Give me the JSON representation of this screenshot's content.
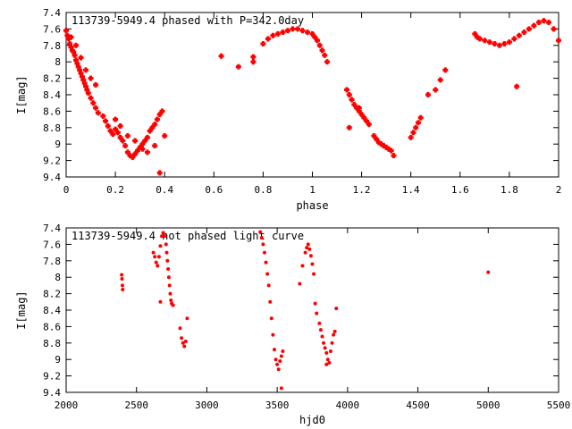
{
  "colors": {
    "points": "#ff0000",
    "axes": "#000000",
    "background": "#ffffff"
  },
  "chart_data": [
    {
      "type": "scatter",
      "title": "113739-5949.4 phased with P=342.0day",
      "xlabel": "phase",
      "ylabel": "I[mag]",
      "xlim": [
        0,
        2
      ],
      "ylim": [
        7.4,
        9.4
      ],
      "y_inverted": true,
      "x_ticks": [
        "0",
        "0.2",
        "0.4",
        "0.6",
        "0.8",
        "1",
        "1.2",
        "1.4",
        "1.6",
        "1.8",
        "2"
      ],
      "y_ticks": [
        "7.4",
        "7.6",
        "7.8",
        "8",
        "8.2",
        "8.4",
        "8.6",
        "8.8",
        "9",
        "9.2",
        "9.4"
      ],
      "grid": false,
      "series": [
        {
          "marker": "plus-bold",
          "x": [
            0.0,
            0.005,
            0.01,
            0.015,
            0.02,
            0.025,
            0.03,
            0.035,
            0.04,
            0.045,
            0.05,
            0.055,
            0.06,
            0.065,
            0.07,
            0.075,
            0.08,
            0.085,
            0.09,
            0.1,
            0.11,
            0.12,
            0.13,
            0.15,
            0.16,
            0.17,
            0.18,
            0.19,
            0.2,
            0.21,
            0.22,
            0.23,
            0.24,
            0.25,
            0.26,
            0.27,
            0.28,
            0.29,
            0.3,
            0.31,
            0.32,
            0.33,
            0.34,
            0.35,
            0.36,
            0.37,
            0.38,
            0.39,
            0.4,
            0.02,
            0.04,
            0.06,
            0.08,
            0.1,
            0.12,
            0.2,
            0.22,
            0.25,
            0.28,
            0.31,
            0.33,
            0.36,
            0.38,
            0.63,
            0.7,
            0.76,
            0.76,
            0.8,
            0.82,
            0.84,
            0.86,
            0.88,
            0.9,
            0.92,
            0.94,
            0.96,
            0.98,
            1.0,
            1.01,
            1.02,
            1.03,
            1.04,
            1.05,
            1.06,
            1.14,
            1.15,
            1.16,
            1.17,
            1.18,
            1.19,
            1.2,
            1.21,
            1.22,
            1.23,
            1.25,
            1.26,
            1.27,
            1.28,
            1.29,
            1.3,
            1.31,
            1.32,
            1.33,
            1.15,
            1.19,
            1.4,
            1.41,
            1.42,
            1.43,
            1.44,
            1.47,
            1.5,
            1.52,
            1.54,
            1.66,
            1.67,
            1.68,
            1.7,
            1.72,
            1.74,
            1.76,
            1.78,
            1.8,
            1.82,
            1.84,
            1.86,
            1.88,
            1.9,
            1.92,
            1.94,
            1.96,
            1.98,
            2.0,
            1.83
          ],
          "y": [
            7.62,
            7.68,
            7.72,
            7.78,
            7.82,
            7.86,
            7.88,
            7.92,
            7.98,
            8.02,
            8.06,
            8.1,
            8.14,
            8.18,
            8.22,
            8.26,
            8.3,
            8.34,
            8.38,
            8.44,
            8.5,
            8.56,
            8.62,
            8.66,
            8.72,
            8.78,
            8.84,
            8.88,
            8.82,
            8.86,
            8.92,
            8.96,
            9.02,
            9.1,
            9.14,
            9.16,
            9.12,
            9.08,
            9.04,
            9.0,
            8.96,
            8.92,
            8.84,
            8.8,
            8.76,
            8.7,
            8.64,
            8.6,
            8.9,
            7.7,
            7.8,
            7.95,
            8.1,
            8.2,
            8.28,
            8.7,
            8.78,
            8.9,
            8.96,
            9.06,
            9.1,
            9.02,
            9.35,
            7.93,
            8.06,
            8.0,
            7.94,
            7.78,
            7.72,
            7.68,
            7.66,
            7.64,
            7.62,
            7.6,
            7.6,
            7.62,
            7.64,
            7.66,
            7.7,
            7.74,
            7.8,
            7.86,
            7.92,
            8.0,
            8.34,
            8.4,
            8.46,
            8.52,
            8.56,
            8.6,
            8.64,
            8.68,
            8.72,
            8.76,
            8.9,
            8.94,
            8.98,
            9.0,
            9.02,
            9.04,
            9.06,
            9.08,
            9.14,
            8.8,
            8.56,
            8.92,
            8.86,
            8.8,
            8.74,
            8.68,
            8.4,
            8.34,
            8.22,
            8.1,
            7.66,
            7.7,
            7.72,
            7.74,
            7.76,
            7.78,
            7.8,
            7.78,
            7.76,
            7.72,
            7.68,
            7.64,
            7.6,
            7.56,
            7.52,
            7.5,
            7.52,
            7.6,
            7.74,
            8.3
          ]
        }
      ]
    },
    {
      "type": "scatter",
      "title": "113739-5949.4 not phased light curve",
      "xlabel": "hjd0",
      "ylabel": "I[mag]",
      "xlim": [
        2000,
        5500
      ],
      "ylim": [
        7.4,
        9.4
      ],
      "y_inverted": true,
      "x_ticks": [
        "2000",
        "2500",
        "3000",
        "3500",
        "4000",
        "4500",
        "5000",
        "5500"
      ],
      "y_ticks": [
        "7.4",
        "7.6",
        "7.8",
        "8",
        "8.2",
        "8.4",
        "8.6",
        "8.8",
        "9",
        "9.2",
        "9.4"
      ],
      "grid": false,
      "series": [
        {
          "marker": "dot",
          "x": [
            2395,
            2397,
            2400,
            2402,
            2620,
            2630,
            2640,
            2650,
            2660,
            2670,
            2680,
            2690,
            2700,
            2710,
            2715,
            2720,
            2725,
            2730,
            2735,
            2740,
            2745,
            2750,
            2760,
            2810,
            2820,
            2830,
            2840,
            2850,
            2860,
            2670,
            3380,
            3390,
            3400,
            3410,
            3420,
            3430,
            3440,
            3450,
            3460,
            3470,
            3480,
            3490,
            3500,
            3510,
            3520,
            3530,
            3540,
            3530,
            3660,
            3680,
            3700,
            3710,
            3720,
            3730,
            3740,
            3750,
            3760,
            3770,
            3780,
            3800,
            3810,
            3820,
            3830,
            3840,
            3850,
            3860,
            3870,
            3880,
            3890,
            3900,
            3910,
            3850,
            3920,
            5000
          ],
          "y": [
            7.97,
            8.02,
            8.1,
            8.15,
            7.7,
            7.75,
            7.82,
            7.86,
            7.75,
            7.62,
            7.5,
            7.46,
            7.5,
            7.6,
            7.7,
            7.8,
            7.9,
            8.0,
            8.1,
            8.2,
            8.28,
            8.32,
            8.34,
            8.62,
            8.74,
            8.8,
            8.84,
            8.78,
            8.5,
            8.3,
            7.45,
            7.52,
            7.6,
            7.7,
            7.82,
            7.96,
            8.1,
            8.3,
            8.5,
            8.7,
            8.88,
            9.0,
            9.06,
            9.12,
            9.02,
            8.96,
            8.9,
            9.35,
            8.08,
            7.86,
            7.7,
            7.64,
            7.6,
            7.66,
            7.74,
            7.84,
            7.96,
            8.32,
            8.44,
            8.56,
            8.64,
            8.72,
            8.8,
            8.86,
            8.92,
            9.0,
            9.04,
            8.9,
            8.8,
            8.7,
            8.66,
            9.06,
            8.38,
            7.94
          ]
        }
      ]
    }
  ]
}
